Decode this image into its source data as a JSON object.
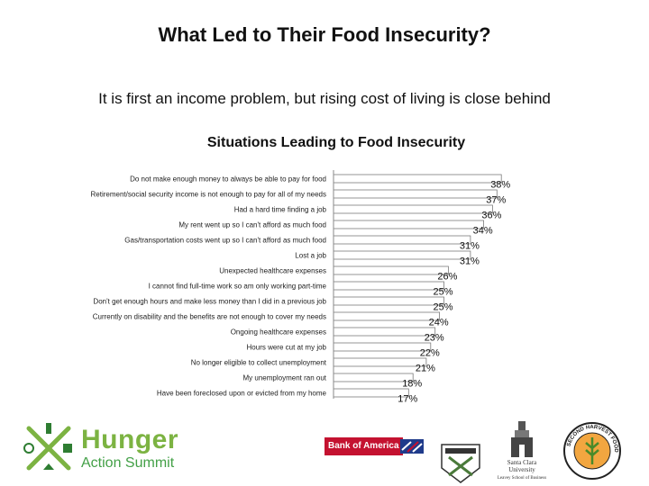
{
  "slide": {
    "title": "What Led to Their Food Insecurity?",
    "subtitle": "It is first an income problem, but rising cost of living is close behind"
  },
  "chart_data": {
    "type": "bar",
    "orientation": "horizontal",
    "title": "Situations Leading to Food Insecurity",
    "categories": [
      "Do not make enough money to always be able to pay for food",
      "Retirement/social security income is not enough to pay for all of my needs",
      "Had a hard time finding a job",
      "My rent went up so I can't afford as much food",
      "Gas/transportation costs went up so I can't afford as much food",
      "Lost a job",
      "Unexpected healthcare expenses",
      "I cannot find full-time work so am only working part-time",
      "Don't get enough hours and make less money than I did in a previous job",
      "Currently on disability and the benefits are not enough to cover my needs",
      "Ongoing healthcare expenses",
      "Hours were cut at my job",
      "No longer eligible to collect unemployment",
      "My unemployment ran out",
      "Have been foreclosed upon or evicted from my home"
    ],
    "values": [
      38,
      37,
      36,
      34,
      31,
      31,
      26,
      25,
      25,
      24,
      23,
      22,
      21,
      18,
      17
    ],
    "value_labels": [
      "38%",
      "37%",
      "36%",
      "34%",
      "31%",
      "31%",
      "26%",
      "25%",
      "25%",
      "24%",
      "23%",
      "22%",
      "21%",
      "18%",
      "17%"
    ],
    "xlim": [
      0,
      40
    ],
    "grid": false,
    "legend": "none",
    "bar_color": "#ffffff",
    "bar_outline": "#7a7a7a"
  },
  "footer": {
    "hunger_logo": {
      "line1": "Hunger",
      "line2": "Action Summit",
      "color": "#7cb342"
    },
    "bank_logo": "Bank of America",
    "university_logo": "Santa Clara University",
    "university_tagline": "Leavey School of Business",
    "food_bank_logo": "SECOND HARVEST FOOD BANK"
  }
}
